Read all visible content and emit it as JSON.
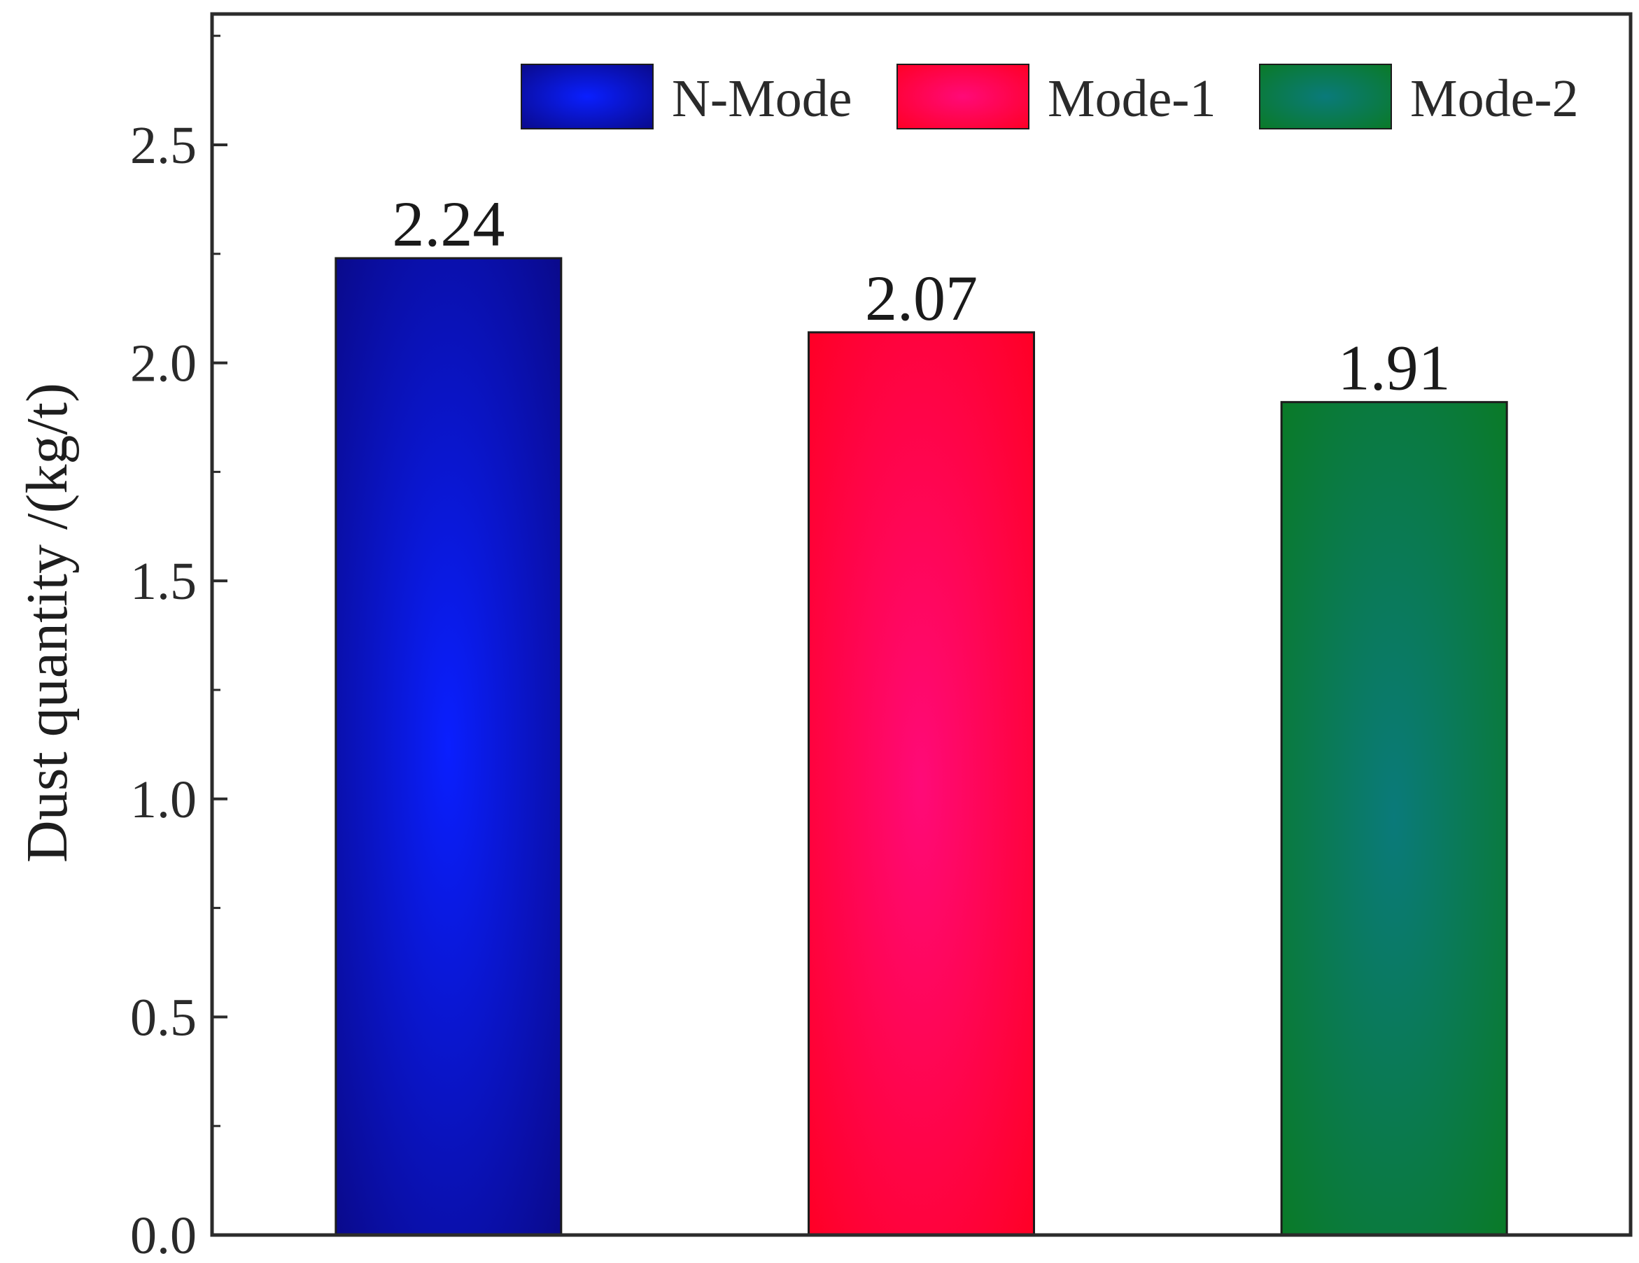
{
  "chart_data": {
    "type": "bar",
    "categories": [
      "N-Mode",
      "Mode-1",
      "Mode-2"
    ],
    "values": [
      2.24,
      2.07,
      1.91
    ],
    "data_labels": [
      "2.24",
      "2.07",
      "1.91"
    ],
    "title": "",
    "xlabel": "",
    "ylabel": "Dust quantity /(kg/t)",
    "ylim": [
      0,
      2.8
    ],
    "yticks": [
      0.0,
      0.5,
      1.0,
      1.5,
      2.0,
      2.5
    ],
    "ytick_labels": [
      "0.0",
      "0.5",
      "1.0",
      "1.5",
      "2.0",
      "2.5"
    ],
    "grid": false,
    "legend": {
      "position": "top-right",
      "entries": [
        "N-Mode",
        "Mode-1",
        "Mode-2"
      ]
    },
    "colors": {
      "N-Mode": {
        "center": "#0a1fff",
        "edge": "#0a0a8c"
      },
      "Mode-1": {
        "center": "#ff0a78",
        "edge": "#ff0026"
      },
      "Mode-2": {
        "center": "#0a7a7a",
        "edge": "#0a7a28"
      }
    }
  }
}
